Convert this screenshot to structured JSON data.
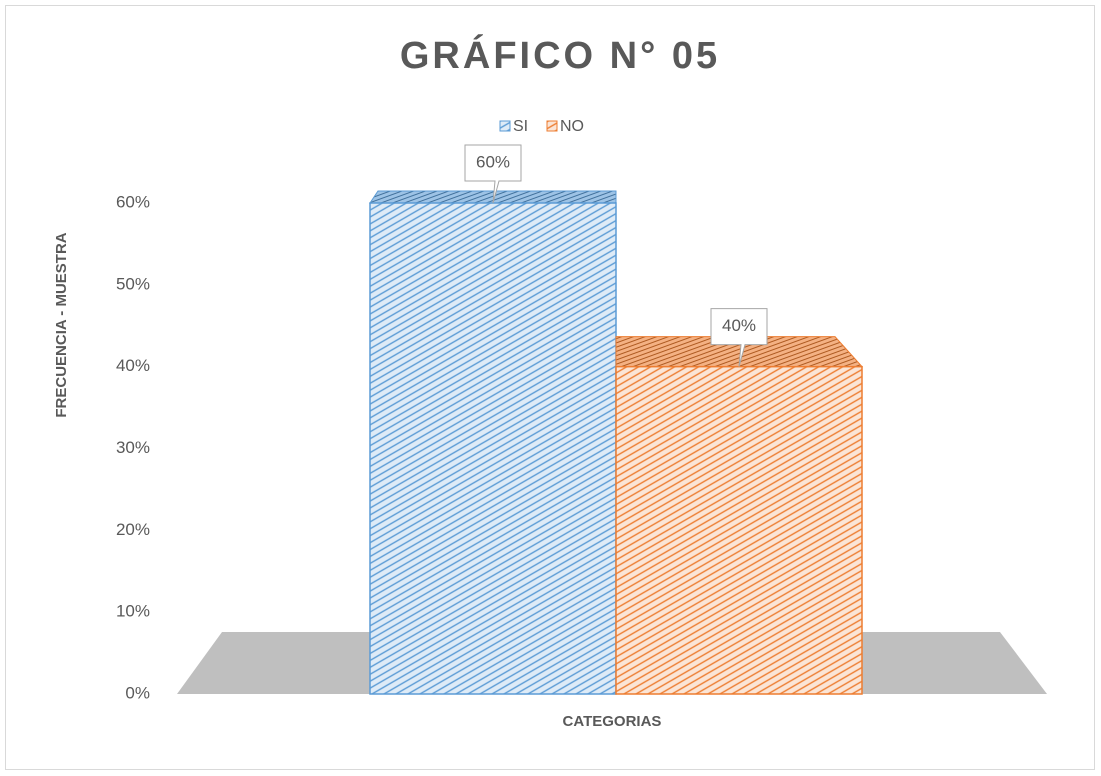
{
  "chart_data": {
    "type": "bar3d",
    "title": "GRÁFICO N° 05",
    "x_label": "CATEGORIAS",
    "y_label": "FRECUENCIA - MUESTRA",
    "categories": [
      null
    ],
    "series": [
      {
        "name": "SI",
        "color": "#5b9bd5",
        "values": [
          60
        ],
        "value_labels": [
          "60%"
        ]
      },
      {
        "name": "NO",
        "color": "#ed7d31",
        "values": [
          40
        ],
        "value_labels": [
          "40%"
        ]
      }
    ],
    "ylim": [
      0,
      60
    ],
    "yticks": [
      {
        "value": 0,
        "label": "0%"
      },
      {
        "value": 10,
        "label": "10%"
      },
      {
        "value": 20,
        "label": "20%"
      },
      {
        "value": 30,
        "label": "30%"
      },
      {
        "value": 40,
        "label": "40%"
      },
      {
        "value": 50,
        "label": "50%"
      },
      {
        "value": 60,
        "label": "60%"
      }
    ],
    "grid": false,
    "legend": "top"
  }
}
